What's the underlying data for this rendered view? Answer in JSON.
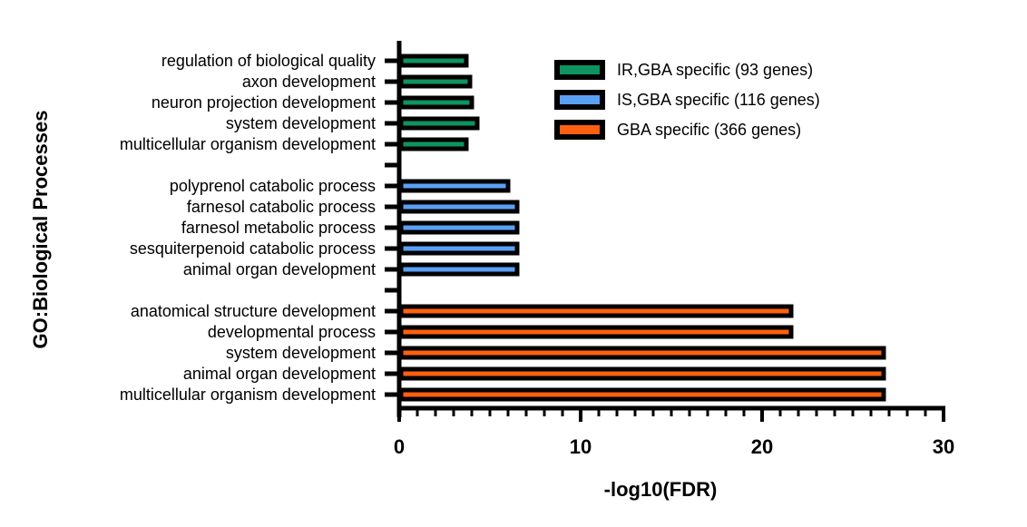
{
  "chart_data": {
    "type": "bar",
    "orientation": "horizontal",
    "xlabel": "-log10(FDR)",
    "ylabel": "GO:Biological Processes",
    "xlim": [
      0,
      30
    ],
    "xticks": [
      0,
      10,
      20,
      30
    ],
    "minor_tick_step": 1,
    "grid": false,
    "legend_position": "top-right",
    "series": [
      {
        "name": "IR,GBA specific  (93 genes)",
        "color": "#0E9460",
        "categories": [
          "regulation of biological quality",
          "axon development",
          "neuron projection development",
          "system development",
          "multicellular organism development"
        ],
        "values": [
          3.7,
          3.9,
          4.0,
          4.3,
          3.7
        ]
      },
      {
        "name": "IS,GBA specific  (116 genes)",
        "color": "#5AA0F5",
        "categories": [
          "polyprenol catabolic process",
          "farnesol catabolic process",
          "farnesol metabolic process",
          "sesquiterpenoid catabolic process",
          "animal organ development"
        ],
        "values": [
          6.0,
          6.5,
          6.5,
          6.5,
          6.5
        ]
      },
      {
        "name": "GBA specific  (366 genes)",
        "color": "#FF6010",
        "categories": [
          "anatomical structure development",
          "developmental process",
          "system development",
          "animal organ development",
          "multicellular organism development"
        ],
        "values": [
          21.6,
          21.6,
          26.7,
          26.7,
          26.7
        ]
      }
    ]
  }
}
